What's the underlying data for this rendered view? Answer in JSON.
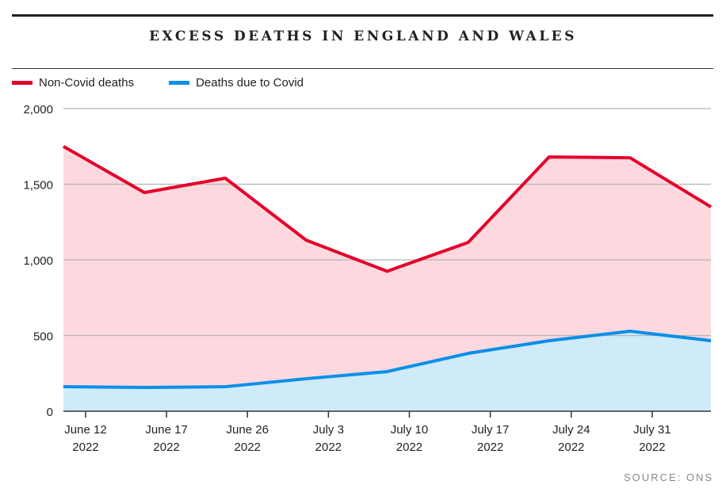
{
  "chart_data": {
    "type": "area",
    "title": "EXCESS DEATHS IN ENGLAND AND WALES",
    "xlabel": "",
    "ylabel": "",
    "ylim": [
      0,
      2000
    ],
    "yticks": [
      "0",
      "500",
      "1,000",
      "1,500",
      "2,000"
    ],
    "ytick_values": [
      0,
      500,
      1000,
      1500,
      2000
    ],
    "xticks": [
      [
        "June 12",
        "2022"
      ],
      [
        "June 17",
        "2022"
      ],
      [
        "June 26",
        "2022"
      ],
      [
        "July 3",
        "2022"
      ],
      [
        "July 10",
        "2022"
      ],
      [
        "July 17",
        "2022"
      ],
      [
        "July 24",
        "2022"
      ],
      [
        "July 31",
        "2022"
      ]
    ],
    "grid": true,
    "legend_position": "top-left",
    "series": [
      {
        "name": "Non-Covid deaths",
        "color": "#e4002b",
        "fill": "#fdd9df",
        "values": [
          1750,
          1445,
          1540,
          1130,
          925,
          1115,
          1680,
          1675,
          1350
        ]
      },
      {
        "name": "Deaths due to Covid",
        "color": "#0a8fe8",
        "fill": "#cfeaf9",
        "values": [
          162,
          157,
          162,
          215,
          262,
          382,
          466,
          529,
          466
        ]
      }
    ],
    "source": "SOURCE: ONS"
  }
}
